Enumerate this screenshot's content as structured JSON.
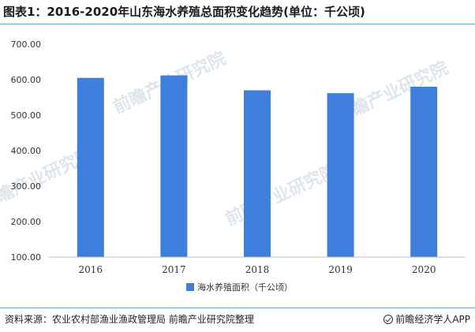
{
  "title": "图表1：2016-2020年山东海水养殖总面积变化趋势(单位：千公顷)",
  "footer": {
    "source": "资料来源：农业农村部渔业渔政管理局 前瞻产业研究院整理",
    "brand": "前瞻经济学人APP"
  },
  "watermark": "前瞻产业研究院",
  "colors": {
    "bar": "#3f7fdc",
    "axis": "#bfbfbf",
    "rule": "#6aa0d8"
  },
  "chart_data": {
    "type": "bar",
    "categories": [
      "2016",
      "2017",
      "2018",
      "2019",
      "2020"
    ],
    "series": [
      {
        "name": "海水养殖面积（千公顷）",
        "values": [
          605,
          612,
          570,
          562,
          580
        ]
      }
    ],
    "ylim": [
      100,
      700
    ],
    "yticks": [
      "100.00",
      "200.00",
      "300.00",
      "400.00",
      "500.00",
      "600.00",
      "700.00"
    ],
    "legend": "bottom-center",
    "grid": false
  }
}
